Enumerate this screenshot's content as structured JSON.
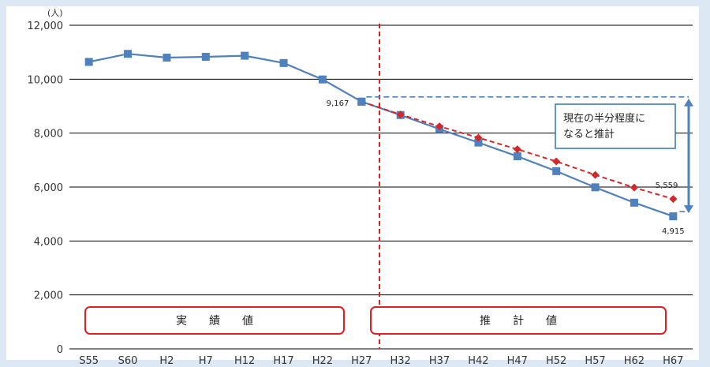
{
  "chart_data": {
    "type": "line",
    "unit_label": "(人)",
    "y_ticks": [
      "12,000",
      "10,000",
      "8,000",
      "6,000",
      "4,000",
      "2,000",
      "0"
    ],
    "ylim": [
      0,
      12000
    ],
    "grid": true,
    "categories": [
      "S55",
      "S60",
      "H2",
      "H7",
      "H12",
      "H17",
      "H22",
      "H27",
      "H32",
      "H37",
      "H42",
      "H47",
      "H52",
      "H57",
      "H62",
      "H67"
    ],
    "series": [
      {
        "color": "#4f81bd",
        "marker": "square",
        "style": "solid",
        "values": [
          10640,
          10940,
          10800,
          10830,
          10870,
          10600,
          9990,
          9167,
          8670,
          8150,
          7650,
          7140,
          6590,
          5990,
          5420,
          4915
        ]
      },
      {
        "color": "#d62728",
        "marker": "diamond",
        "style": "dashed",
        "values": [
          null,
          null,
          null,
          null,
          null,
          null,
          null,
          9167,
          8690,
          8250,
          7830,
          7400,
          6950,
          6450,
          5980,
          5559
        ]
      }
    ],
    "data_labels": {
      "h27": "9,167",
      "h67_projection": "5,559",
      "h67_actual": "4,915"
    },
    "regions": {
      "actual": "実　　績　　値",
      "projection": "推　　計　　値"
    },
    "annotation": {
      "line1": "現在の半分程度に",
      "line2": "なると推計"
    },
    "divider_after_category": "H27"
  },
  "colors": {
    "series_blue": "#4f81bd",
    "series_red": "#d62728",
    "region_border": "#e02020",
    "background": "#dce9f5",
    "annotation_border": "#2e75b6"
  }
}
